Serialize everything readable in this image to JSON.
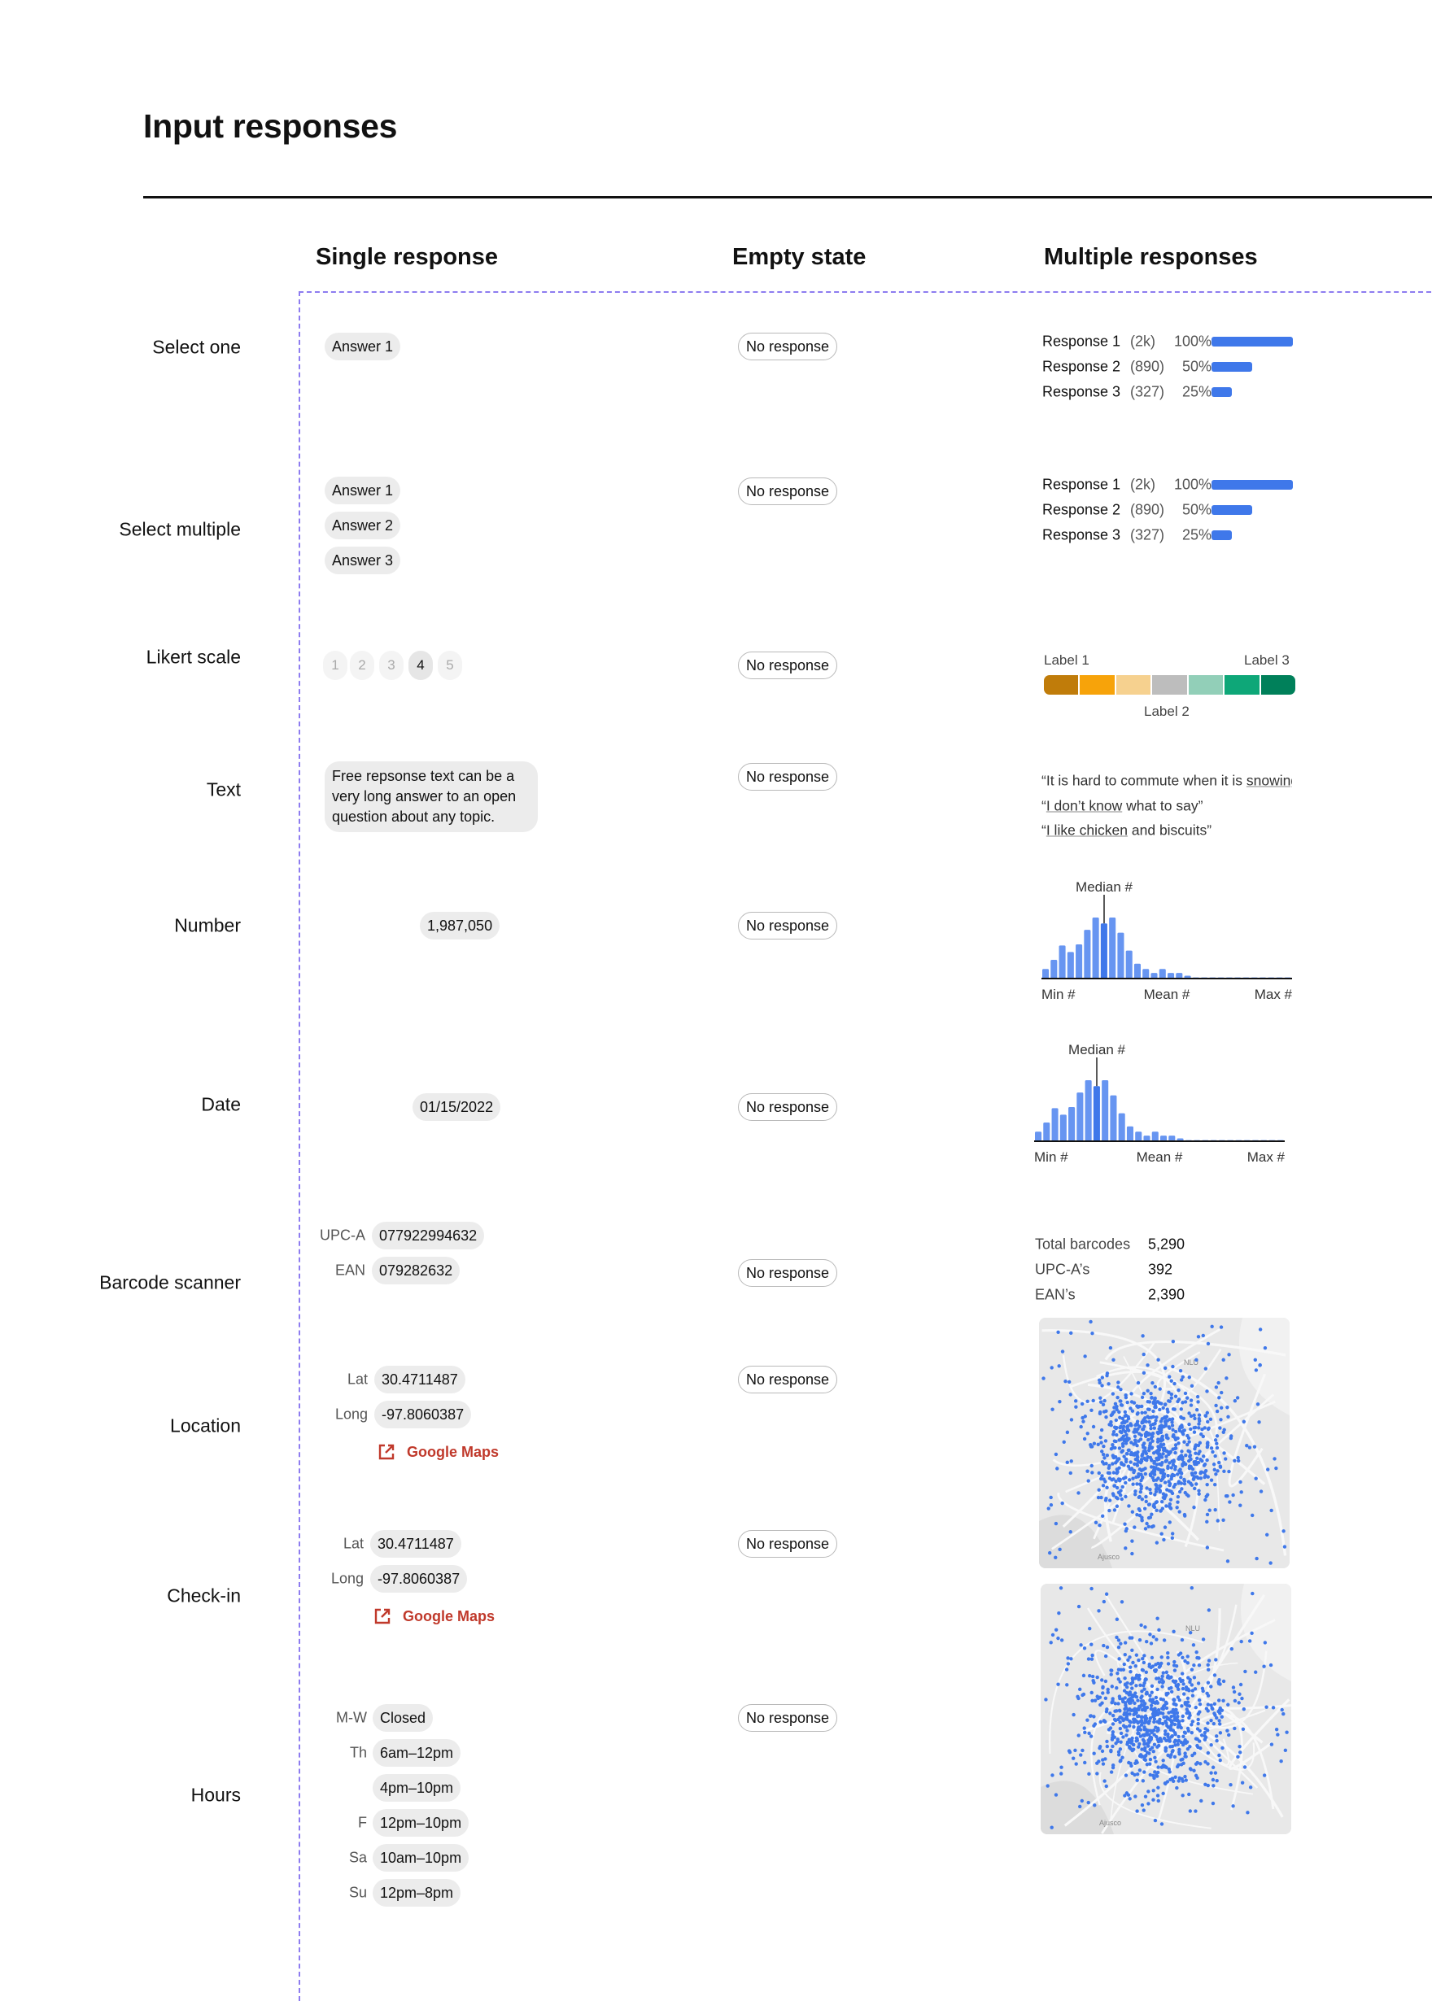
{
  "title": "Input responses",
  "columns": {
    "single": "Single response",
    "empty": "Empty state",
    "multiple": "Multiple responses"
  },
  "empty_label": "No response",
  "rows": {
    "select_one": {
      "label": "Select one",
      "answers": [
        "Answer 1"
      ]
    },
    "select_multiple": {
      "label": "Select multiple",
      "answers": [
        "Answer 1",
        "Answer 2",
        "Answer 3"
      ]
    },
    "likert": {
      "label": "Likert scale",
      "options": [
        "1",
        "2",
        "3",
        "4",
        "5"
      ],
      "selected": "4",
      "labels": {
        "low": "Label 1",
        "mid": "Label 2",
        "high": "Label 3"
      },
      "colors": [
        "#c07c0a",
        "#f7a30a",
        "#f6d18f",
        "#bdbdbd",
        "#92cfb8",
        "#0ea778",
        "#00805a"
      ]
    },
    "text": {
      "label": "Text",
      "answer": "Free repsonse text can be a very long answer to an open question about any topic.",
      "quotes": [
        {
          "open": "“It is hard to commute when it is ",
          "link": "snowing",
          "rest": ""
        },
        {
          "open": "“",
          "link": "I don’t know",
          "rest": " what to say”"
        },
        {
          "open": "“",
          "link": "I like chicken",
          "rest": " and biscuits”"
        }
      ]
    },
    "number": {
      "label": "Number",
      "answer": "1,987,050"
    },
    "date": {
      "label": "Date",
      "answer": "01/15/2022"
    },
    "barcode": {
      "label": "Barcode scanner",
      "fields": [
        {
          "key": "UPC-A",
          "value": "077922994632"
        },
        {
          "key": "EAN",
          "value": "079282632"
        }
      ],
      "stats": [
        {
          "key": "Total barcodes",
          "value": "5,290"
        },
        {
          "key": "UPC-A’s",
          "value": "392"
        },
        {
          "key": "EAN’s",
          "value": "2,390"
        }
      ]
    },
    "location": {
      "label": "Location",
      "lat_label": "Lat",
      "lat": "30.4711487",
      "long_label": "Long",
      "long": "-97.8060387",
      "link": "Google Maps"
    },
    "checkin": {
      "label": "Check-in",
      "lat_label": "Lat",
      "lat": "30.4711487",
      "long_label": "Long",
      "long": "-97.8060387",
      "link": "Google Maps"
    },
    "hours": {
      "label": "Hours",
      "entries": [
        {
          "day": "M-W",
          "time": "Closed"
        },
        {
          "day": "Th",
          "time": "6am–12pm"
        },
        {
          "day": "",
          "time": "4pm–10pm"
        },
        {
          "day": "F",
          "time": "12pm–10pm"
        },
        {
          "day": "Sa",
          "time": "10am–10pm"
        },
        {
          "day": "Su",
          "time": "12pm–8pm"
        }
      ]
    }
  },
  "multiple_choice": [
    {
      "name": "Response 1",
      "count": "(2k)",
      "percent_label": "100%",
      "percent": 100
    },
    {
      "name": "Response 2",
      "count": "(890)",
      "percent_label": "50%",
      "percent": 50
    },
    {
      "name": "Response 3",
      "count": "(327)",
      "percent_label": "25%",
      "percent": 25
    }
  ],
  "map_labels": [
    "NLU",
    "Ajusco"
  ],
  "accent_color": "#3f78ea",
  "link_color": "#c0392b",
  "chart_data": [
    {
      "type": "bar",
      "annotation": "Median #",
      "xticklabels": [
        "Min #",
        "Mean #",
        "Max #"
      ],
      "median_index": 7,
      "values": [
        34,
        67,
        118,
        95,
        122,
        174,
        218,
        197,
        218,
        164,
        100,
        53,
        34,
        20,
        34,
        20,
        20,
        10,
        4,
        4,
        4,
        4,
        4,
        4,
        4,
        4,
        4,
        4,
        4,
        4
      ]
    },
    {
      "type": "bar",
      "annotation": "Median #",
      "xticklabels": [
        "Min #",
        "Mean #",
        "Max #"
      ],
      "median_index": 7,
      "values": [
        34,
        67,
        118,
        95,
        122,
        174,
        218,
        197,
        218,
        164,
        100,
        53,
        34,
        20,
        34,
        20,
        20,
        10,
        4,
        4,
        4,
        4,
        4,
        4,
        4,
        4,
        4,
        4,
        4,
        4
      ]
    }
  ]
}
